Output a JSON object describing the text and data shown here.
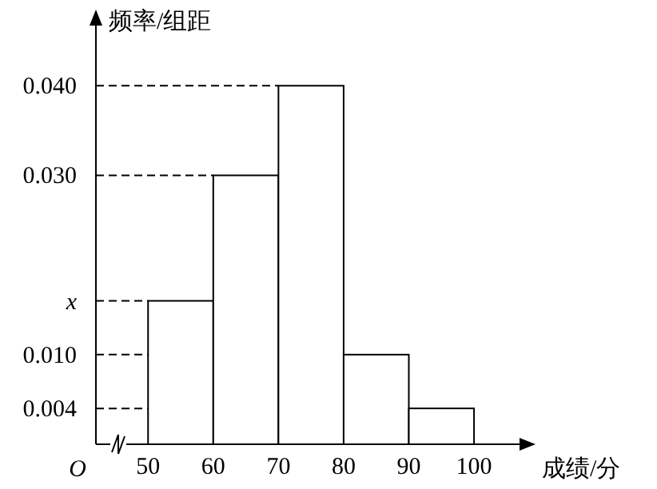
{
  "chart_data": {
    "type": "histogram",
    "xlabel": "成绩/分",
    "ylabel": "频率/组距",
    "color": "#000000",
    "bins": [
      50,
      60,
      70,
      80,
      90,
      100
    ],
    "values": [
      0.016,
      0.03,
      0.04,
      0.01,
      0.004
    ],
    "xlim": [
      42,
      106
    ],
    "xticks": [
      50,
      60,
      70,
      80,
      90,
      100
    ],
    "ylim": [
      0,
      0.046
    ],
    "yticks": [
      {
        "value": 0.004,
        "label": "0.004"
      },
      {
        "value": 0.01,
        "label": "0.010"
      },
      {
        "value": 0.016,
        "label": "x"
      },
      {
        "value": 0.03,
        "label": "0.030"
      },
      {
        "value": 0.04,
        "label": "0.040"
      }
    ],
    "ref_lines": [
      {
        "axis": "y",
        "value": 0.004,
        "line_style": "dashed"
      },
      {
        "axis": "y",
        "value": 0.01,
        "line_style": "dashed"
      },
      {
        "axis": "y",
        "value": 0.016,
        "line_style": "dashed"
      },
      {
        "axis": "y",
        "value": 0.03,
        "line_style": "dashed"
      },
      {
        "axis": "y",
        "value": 0.04,
        "line_style": "dashed"
      }
    ],
    "annotations": [
      "O"
    ]
  }
}
